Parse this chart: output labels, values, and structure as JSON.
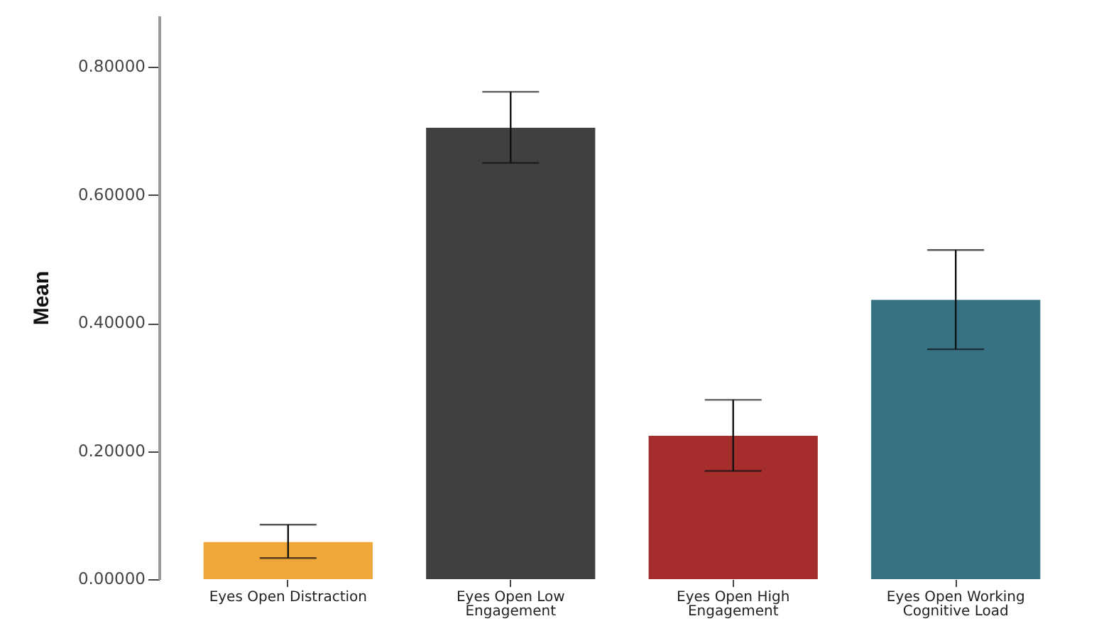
{
  "chart_data": {
    "type": "bar",
    "ylabel": "Mean",
    "categories": [
      "Eyes Open Distraction",
      "Eyes Open Low Engagement",
      "Eyes Open High Engagement",
      "Eyes Open Working Cognitive Load"
    ],
    "values": [
      0.058,
      0.705,
      0.224,
      0.436
    ],
    "colors": [
      "#f0a73a",
      "#404040",
      "#a52d2b",
      "#367284"
    ],
    "errors": [
      [
        0.033,
        0.085
      ],
      [
        0.65,
        0.761
      ],
      [
        0.169,
        0.28
      ],
      [
        0.359,
        0.514
      ]
    ],
    "ylim": [
      0,
      0.88
    ],
    "yticks": [
      {
        "value": 0,
        "label": "0.00000"
      },
      {
        "value": 0.2,
        "label": "0.20000"
      },
      {
        "value": 0.4,
        "label": "0.40000"
      },
      {
        "value": 0.6,
        "label": "0.60000"
      },
      {
        "value": 0.8,
        "label": "0.80000"
      }
    ],
    "grid": false
  }
}
